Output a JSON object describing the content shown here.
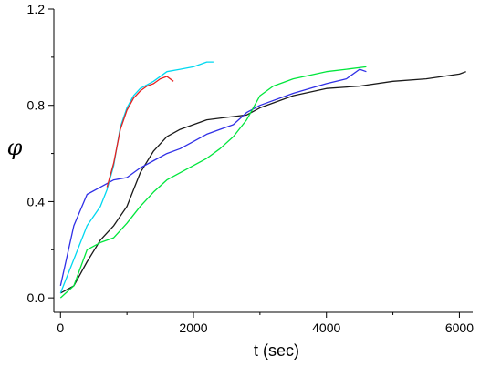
{
  "chart_data": {
    "type": "line",
    "xlabel": "t (sec)",
    "ylabel": "φ",
    "xlim": [
      -100,
      6200
    ],
    "ylim": [
      -0.06,
      1.2
    ],
    "xticks": [
      0,
      2000,
      4000,
      6000
    ],
    "xtick_labels": [
      "0",
      "2000",
      "4000",
      "6000"
    ],
    "yticks": [
      0.0,
      0.4,
      0.8,
      1.2
    ],
    "ytick_labels": [
      "0.0",
      "0.4",
      "0.8",
      "1.2"
    ],
    "grid": false,
    "series": [
      {
        "color": "#1a1a1a",
        "x": [
          0,
          200,
          400,
          600,
          800,
          1000,
          1200,
          1400,
          1600,
          1800,
          2000,
          2200,
          2500,
          2800,
          3000,
          3500,
          4000,
          4500,
          5000,
          5500,
          6000,
          6100
        ],
        "y": [
          0.02,
          0.05,
          0.15,
          0.24,
          0.3,
          0.38,
          0.52,
          0.61,
          0.67,
          0.7,
          0.72,
          0.74,
          0.75,
          0.76,
          0.79,
          0.84,
          0.87,
          0.88,
          0.9,
          0.91,
          0.93,
          0.94
        ]
      },
      {
        "color": "#2f2fe6",
        "x": [
          0,
          200,
          400,
          600,
          800,
          1000,
          1200,
          1400,
          1600,
          1800,
          2000,
          2200,
          2400,
          2600,
          2800,
          3000,
          3500,
          4000,
          4300,
          4500,
          4600
        ],
        "y": [
          0.05,
          0.3,
          0.43,
          0.46,
          0.49,
          0.5,
          0.54,
          0.57,
          0.6,
          0.62,
          0.65,
          0.68,
          0.7,
          0.72,
          0.77,
          0.8,
          0.85,
          0.89,
          0.91,
          0.95,
          0.94
        ]
      },
      {
        "color": "#00e63c",
        "x": [
          0,
          200,
          400,
          600,
          800,
          1000,
          1200,
          1400,
          1600,
          1800,
          2000,
          2200,
          2400,
          2600,
          2800,
          3000,
          3200,
          3500,
          4000,
          4300,
          4600
        ],
        "y": [
          0.0,
          0.05,
          0.2,
          0.23,
          0.25,
          0.31,
          0.38,
          0.44,
          0.49,
          0.52,
          0.55,
          0.58,
          0.62,
          0.67,
          0.74,
          0.84,
          0.88,
          0.91,
          0.94,
          0.95,
          0.96
        ]
      },
      {
        "color": "#00d8f0",
        "x": [
          0,
          200,
          400,
          600,
          700,
          800,
          900,
          1000,
          1100,
          1200,
          1400,
          1600,
          1800,
          2000,
          2200,
          2300
        ],
        "y": [
          0.02,
          0.16,
          0.3,
          0.38,
          0.45,
          0.55,
          0.71,
          0.79,
          0.84,
          0.87,
          0.9,
          0.94,
          0.95,
          0.96,
          0.98,
          0.98
        ]
      },
      {
        "color": "#e62020",
        "x": [
          700,
          800,
          900,
          1000,
          1100,
          1200,
          1300,
          1400,
          1500,
          1600,
          1700
        ],
        "y": [
          0.46,
          0.56,
          0.7,
          0.78,
          0.83,
          0.86,
          0.88,
          0.89,
          0.91,
          0.92,
          0.9
        ]
      }
    ]
  }
}
